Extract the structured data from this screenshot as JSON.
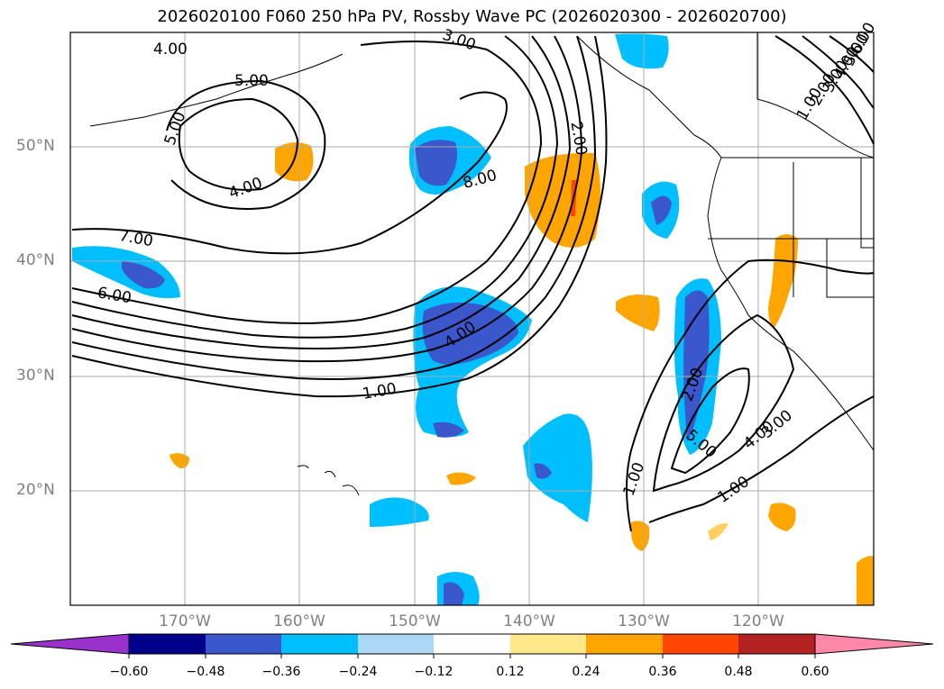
{
  "title": "2026020100 F060 250 hPa PV, Rossby Wave PC (2026020300 - 2026020700)",
  "lat_labels": [
    "50°N",
    "40°N",
    "30°N",
    "20°N"
  ],
  "lon_labels": [
    "170°W",
    "160°W",
    "150°W",
    "140°W",
    "130°W",
    "120°W"
  ],
  "contour_labels": [
    "4.00",
    "5.00",
    "5.00",
    "4.00",
    "3.00",
    "8.00",
    "2.00",
    "7.00",
    "6.00",
    "4.00",
    "1.00",
    "2.00",
    "5.00",
    "4.00",
    "3.00",
    "1.00",
    "1.00",
    "1.00",
    "2.00",
    "3.00",
    "4.00",
    "5.00",
    "6.00"
  ],
  "colorbar": {
    "ticks": [
      "−0.60",
      "−0.48",
      "−0.36",
      "−0.24",
      "−0.12",
      "0.12",
      "0.24",
      "0.36",
      "0.48",
      "0.60"
    ],
    "colors": [
      "#9932cc",
      "#00008b",
      "#3a57cc",
      "#00bfff",
      "#add8f5",
      "#ffffff",
      "#ffe88a",
      "#ffa500",
      "#ff4500",
      "#b22222",
      "#ff88aa"
    ]
  },
  "styles": {
    "positive_fill": "#ffa500",
    "negative_fill": "#3a57cc",
    "contour_color": "#000000",
    "grid_color": "#aaaaaa"
  }
}
